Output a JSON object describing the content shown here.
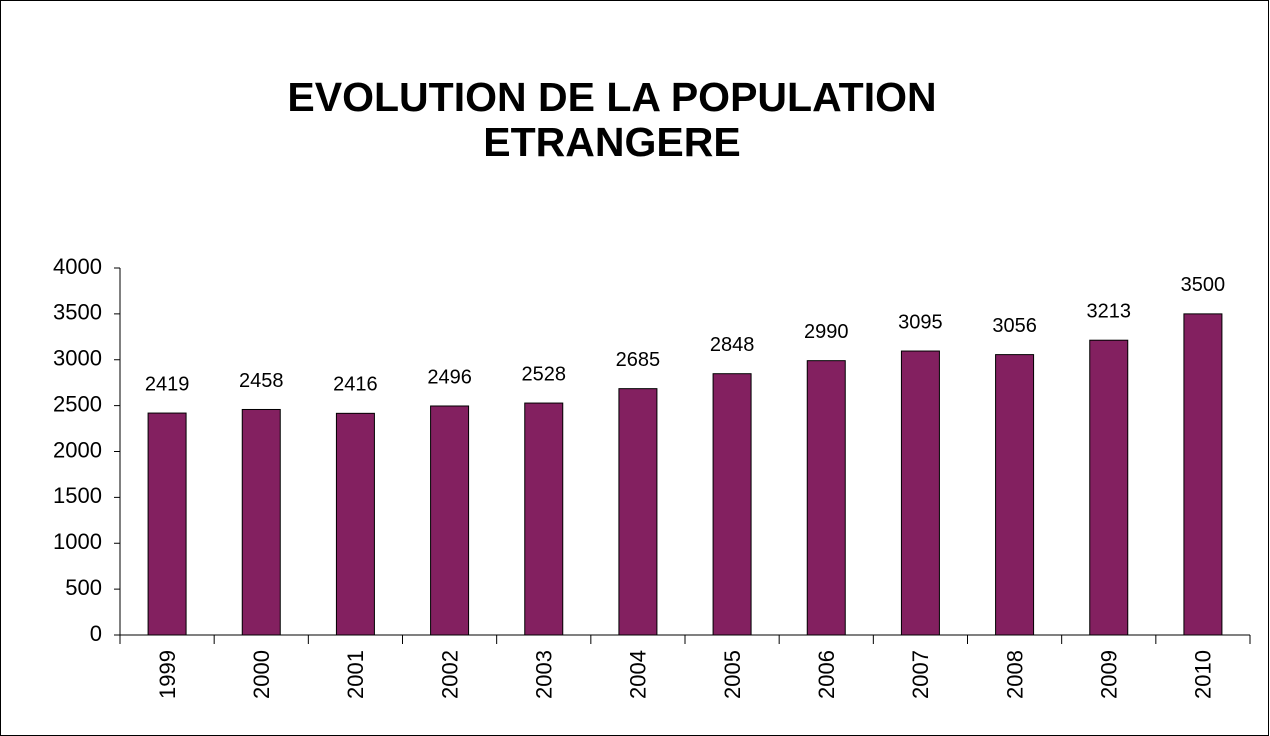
{
  "chart_data": {
    "type": "bar",
    "title": [
      "EVOLUTION DE LA POPULATION",
      "ETRANGERE"
    ],
    "categories": [
      "1999",
      "2000",
      "2001",
      "2002",
      "2003",
      "2004",
      "2005",
      "2006",
      "2007",
      "2008",
      "2009",
      "2010"
    ],
    "values": [
      2419,
      2458,
      2416,
      2496,
      2528,
      2685,
      2848,
      2990,
      3095,
      3056,
      3213,
      3500
    ],
    "color": "#832060",
    "ylim": [
      0,
      4000
    ],
    "yticks": [
      0,
      500,
      1000,
      1500,
      2000,
      2500,
      3000,
      3500,
      4000
    ],
    "grid": false
  }
}
